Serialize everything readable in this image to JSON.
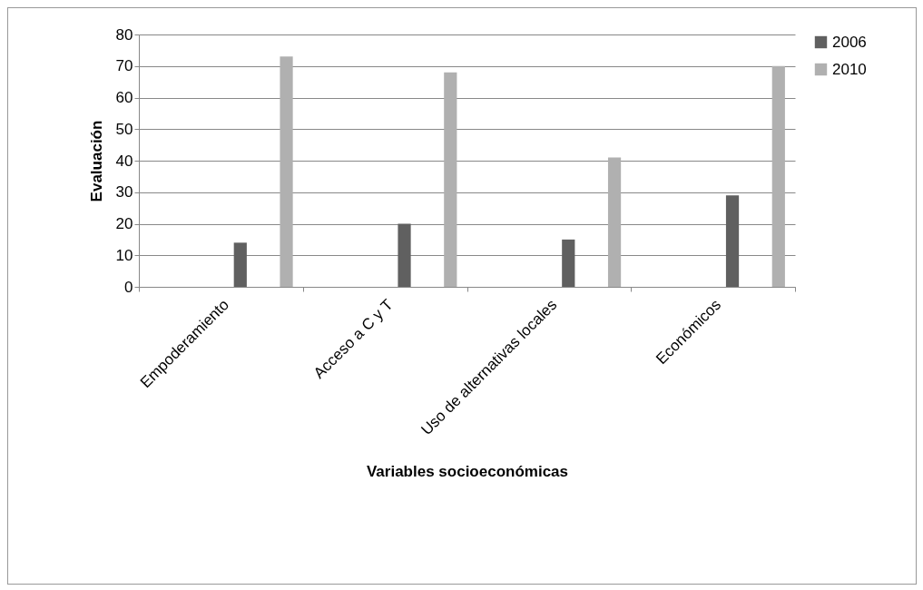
{
  "chart_data": {
    "type": "bar",
    "xlabel": "Variables socioeconómicas",
    "ylabel": "Evaluación",
    "categories": [
      "Empoderamiento",
      "Acceso a C y T",
      "Uso de alternativas locales",
      "Económicos"
    ],
    "series": [
      {
        "name": "2006",
        "color": "#606060",
        "values": [
          14,
          20,
          15,
          29
        ]
      },
      {
        "name": "2010",
        "color": "#b0b0b0",
        "values": [
          73,
          68,
          41,
          70
        ]
      }
    ],
    "ylim": [
      0,
      80
    ],
    "yticks": [
      0,
      10,
      20,
      30,
      40,
      50,
      60,
      70,
      80
    ],
    "grid": "y",
    "legend": "right"
  }
}
